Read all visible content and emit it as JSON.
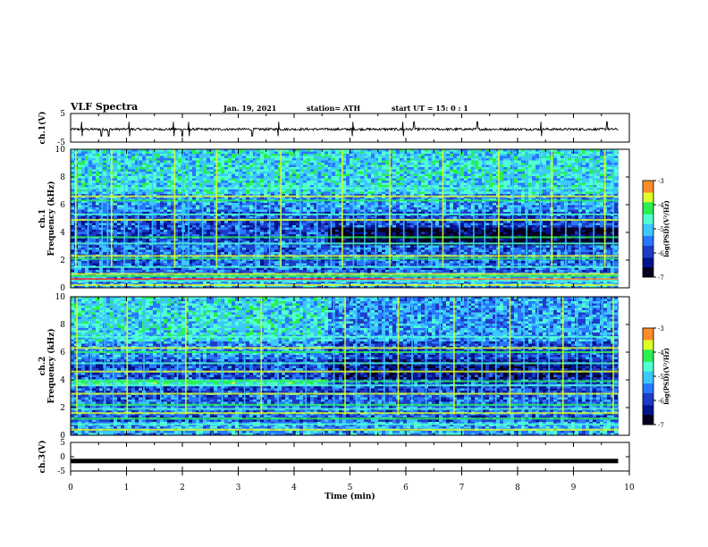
{
  "header": {
    "title": "VLF Spectra",
    "date": "Jan. 19, 2021",
    "station": "station= ATH",
    "start": "start  UT =  15: 0  : 1"
  },
  "colors": {
    "cmap": [
      "#08001e",
      "#00148c",
      "#1e3cc8",
      "#2878ff",
      "#3cc8ff",
      "#50ffd2",
      "#28f050",
      "#dcff28",
      "#ff8c28",
      "#ff2814",
      "#ffffff"
    ]
  },
  "chart_data": [
    {
      "type": "line",
      "name": "ch1-waveform",
      "ylabel": "ch.1(V)",
      "ylim": [
        -5,
        5
      ],
      "yticks": [
        "5",
        "-5"
      ],
      "xlim": [
        0,
        10
      ],
      "baseline": -0.5,
      "noise_amplitude": 0.4,
      "spike_times": [
        0.2,
        0.55,
        0.68,
        1.05,
        1.85,
        2.0,
        2.12,
        3.25,
        3.72,
        5.05,
        5.95,
        6.15,
        7.28,
        8.42,
        9.6
      ]
    },
    {
      "type": "heatmap",
      "name": "ch1-spectrogram",
      "ylabel": "ch.1\nFrequency (kHz)",
      "ylim": [
        0,
        10
      ],
      "yticks": [
        0,
        2,
        4,
        6,
        8,
        10
      ],
      "xlim": [
        0,
        9.8
      ],
      "colorbar": {
        "label": "log(PSD)(V²/Hz)",
        "range": [
          -7,
          -3
        ],
        "ticks": [
          "-3",
          "-4",
          "-5",
          "-6",
          "-7"
        ]
      },
      "regime_change_min": 4.6,
      "bands_kHz": [
        0.2,
        0.5,
        0.85,
        1.0,
        1.5,
        2.1,
        2.3,
        3.2,
        3.65,
        4.9,
        5.3,
        6.3,
        6.6,
        7.2
      ],
      "sferic_times_min": [
        0.08,
        0.3,
        0.55,
        0.65,
        0.72,
        0.95,
        1.2,
        1.45,
        1.85,
        2.0,
        2.1,
        2.35,
        2.6,
        3.0,
        3.3,
        3.55,
        3.75,
        4.1,
        4.4,
        4.65,
        4.85,
        5.05,
        5.25,
        5.45,
        5.7,
        5.95,
        6.2,
        6.45,
        6.65,
        6.95,
        7.2,
        7.4,
        7.65,
        7.9,
        8.15,
        8.4,
        8.6,
        8.85,
        9.1,
        9.35,
        9.55,
        9.7
      ]
    },
    {
      "type": "heatmap",
      "name": "ch2-spectrogram",
      "ylabel": "ch.2\nFrequency (kHz)",
      "ylim": [
        0,
        10
      ],
      "yticks": [
        0,
        2,
        4,
        6,
        8,
        10
      ],
      "xlim": [
        0,
        9.8
      ],
      "colorbar": {
        "label": "log(PSD)(V²/Hz)",
        "range": [
          -7,
          -3
        ],
        "ticks": [
          "-3",
          "-4",
          "-5",
          "-6",
          "-7"
        ]
      },
      "regime_change_min": 4.6,
      "bands_kHz": [
        0.4,
        0.8,
        1.2,
        1.6,
        1.9,
        2.2,
        3.0,
        3.6,
        3.9,
        4.6,
        5.2,
        6.0,
        6.3,
        7.1
      ],
      "sferic_times_min": [
        0.1,
        0.35,
        0.6,
        0.75,
        1.0,
        1.3,
        1.6,
        1.9,
        2.05,
        2.3,
        2.7,
        3.1,
        3.4,
        3.7,
        4.2,
        4.7,
        4.9,
        5.1,
        5.35,
        5.6,
        5.85,
        6.1,
        6.35,
        6.6,
        6.85,
        7.1,
        7.35,
        7.6,
        7.85,
        8.1,
        8.35,
        8.55,
        8.8,
        9.05,
        9.3,
        9.5,
        9.7
      ]
    },
    {
      "type": "line",
      "name": "ch3-waveform",
      "ylabel": "ch.3(V)",
      "ylim": [
        -5,
        5
      ],
      "yticks": [
        "5",
        "0",
        "-5"
      ],
      "xlim": [
        0,
        10
      ],
      "baseline": -1.5,
      "xlabel": "Time  (min)",
      "xticks": [
        "0",
        "1",
        "2",
        "3",
        "4",
        "5",
        "6",
        "7",
        "8",
        "9",
        "10"
      ]
    }
  ]
}
